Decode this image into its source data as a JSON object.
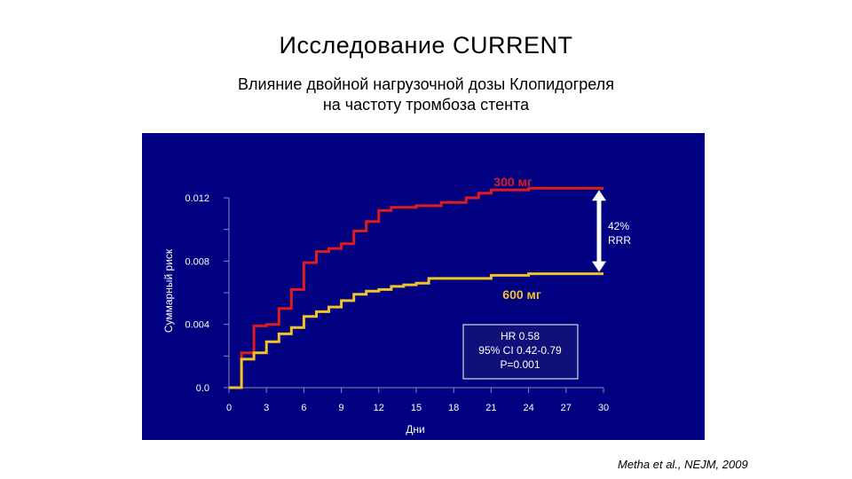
{
  "title": "Исследование  CURRENT",
  "subtitle": {
    "line1": "Влияние  двойной  нагрузочной  дозы  Клопидогреля",
    "line2": "на  частоту  тромбоза  стента"
  },
  "citation": "Metha et al., NEJM, 2009",
  "chart_data": {
    "type": "line",
    "step": true,
    "xlabel": "Дни",
    "ylabel": "Суммарный риск",
    "xlim": [
      0,
      30
    ],
    "ylim": [
      0,
      0.012
    ],
    "x_ticks": [
      "0",
      "3",
      "6",
      "9",
      "12",
      "15",
      "18",
      "21",
      "24",
      "27",
      "30"
    ],
    "y_ticks": [
      "0.0",
      "0.004",
      "0.008",
      "0.012"
    ],
    "background_color": "#000080",
    "series": [
      {
        "name": "300  мг",
        "color": "#e01b1b",
        "points": [
          [
            0,
            0
          ],
          [
            1,
            0
          ],
          [
            1,
            0.0022
          ],
          [
            2,
            0.0022
          ],
          [
            2,
            0.0039
          ],
          [
            3,
            0.0039
          ],
          [
            3,
            0.004
          ],
          [
            4,
            0.004
          ],
          [
            4,
            0.005
          ],
          [
            5,
            0.005
          ],
          [
            5,
            0.0062
          ],
          [
            6,
            0.0062
          ],
          [
            6,
            0.0079
          ],
          [
            7,
            0.0079
          ],
          [
            7,
            0.0086
          ],
          [
            8,
            0.0086
          ],
          [
            8,
            0.0088
          ],
          [
            9,
            0.0088
          ],
          [
            9,
            0.0091
          ],
          [
            10,
            0.0091
          ],
          [
            10,
            0.0099
          ],
          [
            11,
            0.0099
          ],
          [
            11,
            0.0105
          ],
          [
            12,
            0.0105
          ],
          [
            12,
            0.0112
          ],
          [
            13,
            0.0112
          ],
          [
            13,
            0.0114
          ],
          [
            15,
            0.0114
          ],
          [
            15,
            0.0115
          ],
          [
            17,
            0.0115
          ],
          [
            17,
            0.0117
          ],
          [
            19,
            0.0117
          ],
          [
            19,
            0.012
          ],
          [
            20,
            0.012
          ],
          [
            20,
            0.0123
          ],
          [
            21,
            0.0123
          ],
          [
            21,
            0.0125
          ],
          [
            24,
            0.0125
          ],
          [
            24,
            0.0126
          ],
          [
            30,
            0.0126
          ]
        ]
      },
      {
        "name": "600  мг",
        "color": "#f2c22a",
        "points": [
          [
            0,
            0
          ],
          [
            1,
            0
          ],
          [
            1,
            0.0018
          ],
          [
            2,
            0.0018
          ],
          [
            2,
            0.0022
          ],
          [
            3,
            0.0022
          ],
          [
            3,
            0.0029
          ],
          [
            4,
            0.0029
          ],
          [
            4,
            0.0034
          ],
          [
            5,
            0.0034
          ],
          [
            5,
            0.0038
          ],
          [
            6,
            0.0038
          ],
          [
            6,
            0.0045
          ],
          [
            7,
            0.0045
          ],
          [
            7,
            0.0048
          ],
          [
            8,
            0.0048
          ],
          [
            8,
            0.0051
          ],
          [
            9,
            0.0051
          ],
          [
            9,
            0.0055
          ],
          [
            10,
            0.0055
          ],
          [
            10,
            0.0059
          ],
          [
            11,
            0.0059
          ],
          [
            11,
            0.0061
          ],
          [
            12,
            0.0061
          ],
          [
            12,
            0.0062
          ],
          [
            13,
            0.0062
          ],
          [
            13,
            0.0064
          ],
          [
            14,
            0.0064
          ],
          [
            14,
            0.0065
          ],
          [
            15,
            0.0065
          ],
          [
            15,
            0.0066
          ],
          [
            16,
            0.0066
          ],
          [
            16,
            0.0069
          ],
          [
            21,
            0.0069
          ],
          [
            21,
            0.0071
          ],
          [
            24,
            0.0071
          ],
          [
            24,
            0.0072
          ],
          [
            30,
            0.0072
          ]
        ]
      }
    ],
    "annotations": {
      "rrr_line1": "42%",
      "rrr_line2": "RRR",
      "stats_line1": "HR 0.58",
      "stats_line2": "95% CI 0.42-0.79",
      "stats_line3": "P=0.001"
    }
  }
}
